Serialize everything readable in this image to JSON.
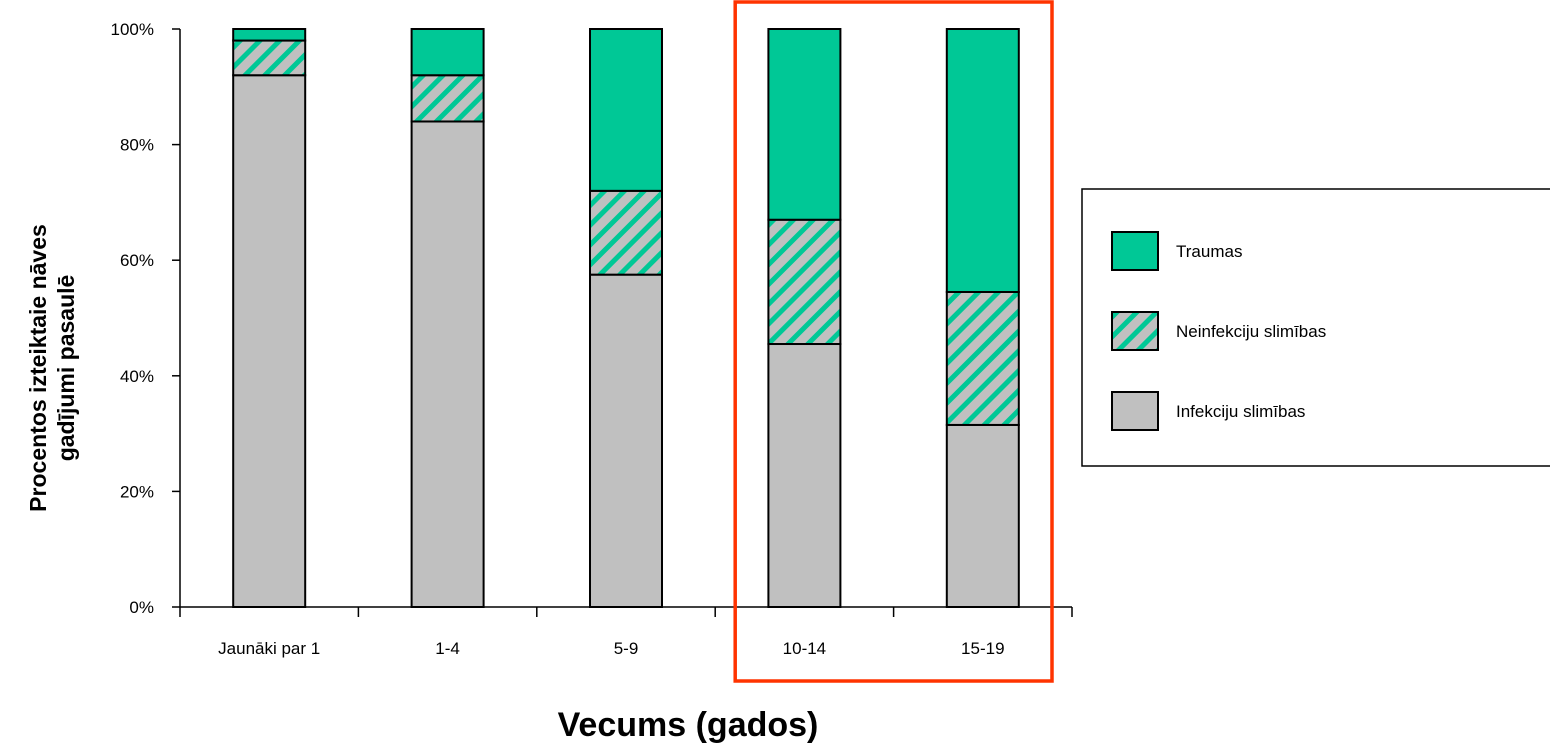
{
  "chart_data": {
    "type": "bar",
    "stacked": true,
    "percent_stacked": true,
    "categories": [
      "Jaunāki par  1",
      "1-4",
      "5-9",
      "10-14",
      "15-19"
    ],
    "series": [
      {
        "name": "Infekciju slimības",
        "values": [
          92,
          84,
          57.5,
          45.5,
          31.5
        ]
      },
      {
        "name": "Neinfekciju slimības",
        "values": [
          6,
          8,
          14.5,
          21.5,
          23
        ]
      },
      {
        "name": "Traumas",
        "values": [
          2,
          8,
          28,
          33,
          45.5
        ]
      }
    ],
    "legend_order": [
      "Traumas",
      "Neinfekciju slimības",
      "Infekciju slimības"
    ],
    "ylabel_lines": [
      "Procentos izteiktaie nāves",
      "gadījumi pasaulē"
    ],
    "xlabel": "Vecums (gados)",
    "ylim": [
      0,
      100
    ],
    "y_ticks": [
      "0%",
      "20%",
      "40%",
      "60%",
      "80%",
      "100%"
    ],
    "y_tick_values": [
      0,
      20,
      40,
      60,
      80,
      100
    ],
    "legend_position": "right",
    "highlight_categories": [
      "10-14",
      "15-19"
    ],
    "colors": {
      "Infekciju slimības": "#c0c0c0",
      "Neinfekciju slimības_base": "#c0c0c0",
      "Neinfekciju slimības_stripe": "#00c896",
      "Traumas": "#00c896",
      "highlight_box": "#ff3300"
    }
  }
}
